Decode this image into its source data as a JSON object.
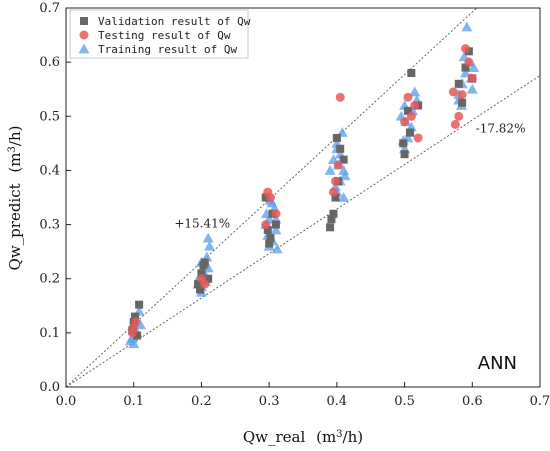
{
  "chart_data": {
    "type": "scatter",
    "title": "",
    "model_label": "ANN",
    "xlabel": {
      "base": "Qw_real",
      "unit_open": "(m",
      "unit_sup": "3",
      "unit_close": "/h)"
    },
    "ylabel": {
      "base": "Qw_predict",
      "unit_open": "(m",
      "unit_sup": "3",
      "unit_close": "/h)"
    },
    "xlim": [
      0.0,
      0.7
    ],
    "ylim": [
      0.0,
      0.7
    ],
    "xticks": [
      "0.0",
      "0.1",
      "0.2",
      "0.3",
      "0.4",
      "0.5",
      "0.6",
      "0.7"
    ],
    "yticks": [
      "0.0",
      "0.1",
      "0.2",
      "0.3",
      "0.4",
      "0.5",
      "0.6",
      "0.7"
    ],
    "grid": false,
    "legend_position": "top-left",
    "reference_lines": [
      {
        "label": "+15.41%",
        "slope": 1.1541,
        "label_at": [
          0.16,
          0.295
        ]
      },
      {
        "label": "-17.82%",
        "slope": 0.8218,
        "label_at": [
          0.605,
          0.47
        ]
      }
    ],
    "series": [
      {
        "name": "Validation result of Qw",
        "marker": "square",
        "color": "#666666",
        "points": [
          [
            0.108,
            0.152
          ],
          [
            0.1,
            0.12
          ],
          [
            0.105,
            0.095
          ],
          [
            0.098,
            0.105
          ],
          [
            0.102,
            0.13
          ],
          [
            0.2,
            0.21
          ],
          [
            0.205,
            0.23
          ],
          [
            0.198,
            0.18
          ],
          [
            0.21,
            0.2
          ],
          [
            0.195,
            0.19
          ],
          [
            0.203,
            0.225
          ],
          [
            0.3,
            0.265
          ],
          [
            0.305,
            0.32
          ],
          [
            0.298,
            0.29
          ],
          [
            0.31,
            0.3
          ],
          [
            0.295,
            0.35
          ],
          [
            0.302,
            0.275
          ],
          [
            0.39,
            0.295
          ],
          [
            0.395,
            0.32
          ],
          [
            0.4,
            0.46
          ],
          [
            0.405,
            0.44
          ],
          [
            0.41,
            0.42
          ],
          [
            0.398,
            0.35
          ],
          [
            0.392,
            0.31
          ],
          [
            0.402,
            0.38
          ],
          [
            0.51,
            0.58
          ],
          [
            0.505,
            0.51
          ],
          [
            0.5,
            0.43
          ],
          [
            0.52,
            0.52
          ],
          [
            0.498,
            0.45
          ],
          [
            0.508,
            0.47
          ],
          [
            0.59,
            0.59
          ],
          [
            0.595,
            0.62
          ],
          [
            0.58,
            0.56
          ],
          [
            0.6,
            0.57
          ],
          [
            0.585,
            0.525
          ]
        ]
      },
      {
        "name": "Testing result of Qw",
        "marker": "circle",
        "color": "#e8595a",
        "points": [
          [
            0.1,
            0.11
          ],
          [
            0.103,
            0.12
          ],
          [
            0.098,
            0.1
          ],
          [
            0.205,
            0.19
          ],
          [
            0.2,
            0.2
          ],
          [
            0.298,
            0.36
          ],
          [
            0.302,
            0.35
          ],
          [
            0.31,
            0.32
          ],
          [
            0.295,
            0.3
          ],
          [
            0.405,
            0.535
          ],
          [
            0.398,
            0.38
          ],
          [
            0.402,
            0.41
          ],
          [
            0.395,
            0.36
          ],
          [
            0.515,
            0.52
          ],
          [
            0.52,
            0.46
          ],
          [
            0.505,
            0.535
          ],
          [
            0.5,
            0.49
          ],
          [
            0.51,
            0.5
          ],
          [
            0.575,
            0.485
          ],
          [
            0.58,
            0.5
          ],
          [
            0.59,
            0.625
          ],
          [
            0.585,
            0.54
          ],
          [
            0.6,
            0.57
          ],
          [
            0.572,
            0.545
          ],
          [
            0.595,
            0.6
          ]
        ]
      },
      {
        "name": "Training result of Qw",
        "marker": "triangle",
        "color": "#5b9ee8",
        "points": [
          [
            0.1,
            0.08
          ],
          [
            0.105,
            0.1
          ],
          [
            0.098,
            0.09
          ],
          [
            0.11,
            0.115
          ],
          [
            0.095,
            0.085
          ],
          [
            0.102,
            0.125
          ],
          [
            0.108,
            0.14
          ],
          [
            0.1,
            0.105
          ],
          [
            0.2,
            0.185
          ],
          [
            0.205,
            0.2
          ],
          [
            0.21,
            0.22
          ],
          [
            0.195,
            0.19
          ],
          [
            0.2,
            0.175
          ],
          [
            0.208,
            0.24
          ],
          [
            0.212,
            0.26
          ],
          [
            0.21,
            0.275
          ],
          [
            0.198,
            0.205
          ],
          [
            0.202,
            0.215
          ],
          [
            0.206,
            0.195
          ],
          [
            0.2,
            0.23
          ],
          [
            0.3,
            0.26
          ],
          [
            0.305,
            0.27
          ],
          [
            0.31,
            0.29
          ],
          [
            0.295,
            0.3
          ],
          [
            0.3,
            0.31
          ],
          [
            0.308,
            0.33
          ],
          [
            0.302,
            0.345
          ],
          [
            0.298,
            0.28
          ],
          [
            0.312,
            0.255
          ],
          [
            0.296,
            0.32
          ],
          [
            0.304,
            0.34
          ],
          [
            0.31,
            0.31
          ],
          [
            0.4,
            0.36
          ],
          [
            0.405,
            0.38
          ],
          [
            0.41,
            0.4
          ],
          [
            0.395,
            0.42
          ],
          [
            0.4,
            0.44
          ],
          [
            0.408,
            0.47
          ],
          [
            0.412,
            0.39
          ],
          [
            0.398,
            0.37
          ],
          [
            0.402,
            0.41
          ],
          [
            0.405,
            0.43
          ],
          [
            0.39,
            0.4
          ],
          [
            0.41,
            0.35
          ],
          [
            0.4,
            0.45
          ],
          [
            0.5,
            0.44
          ],
          [
            0.505,
            0.46
          ],
          [
            0.51,
            0.48
          ],
          [
            0.495,
            0.5
          ],
          [
            0.5,
            0.52
          ],
          [
            0.515,
            0.545
          ],
          [
            0.508,
            0.47
          ],
          [
            0.502,
            0.49
          ],
          [
            0.512,
            0.51
          ],
          [
            0.498,
            0.455
          ],
          [
            0.518,
            0.53
          ],
          [
            0.58,
            0.54
          ],
          [
            0.585,
            0.56
          ],
          [
            0.59,
            0.58
          ],
          [
            0.595,
            0.6
          ],
          [
            0.6,
            0.55
          ],
          [
            0.58,
            0.53
          ],
          [
            0.592,
            0.665
          ],
          [
            0.588,
            0.61
          ],
          [
            0.598,
            0.57
          ],
          [
            0.584,
            0.52
          ],
          [
            0.602,
            0.59
          ]
        ]
      }
    ]
  }
}
